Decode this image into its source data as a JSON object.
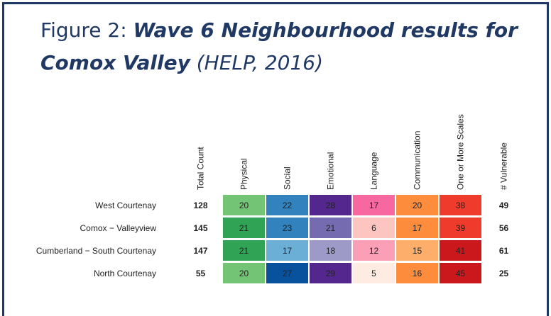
{
  "figure": {
    "label": "Figure 2: ",
    "title": "Wave 6 Neighbourhood results for Comox Valley",
    "source": " (HELP, 2016)"
  },
  "table": {
    "columns": [
      "Total Count",
      "Physical",
      "Social",
      "Emotional",
      "Language",
      "Communication",
      "One or More Scales",
      "# Vulnerable"
    ],
    "rows": [
      {
        "label": "West Courtenay",
        "cells": [
          128,
          20,
          22,
          28,
          17,
          20,
          38,
          49
        ],
        "colors": [
          null,
          "#74c476",
          "#3182bd",
          "#54278f",
          "#f768a1",
          "#fd8d3c",
          "#ef3b2c",
          null
        ]
      },
      {
        "label": "Comox − Valleyview",
        "cells": [
          145,
          21,
          23,
          21,
          6,
          17,
          39,
          56
        ],
        "colors": [
          null,
          "#31a354",
          "#3182bd",
          "#756bb1",
          "#fcc5c0",
          "#fd8d3c",
          "#ef3b2c",
          null
        ]
      },
      {
        "label": "Cumberland − South Courtenay",
        "cells": [
          147,
          21,
          17,
          18,
          12,
          15,
          41,
          61
        ],
        "colors": [
          null,
          "#31a354",
          "#6baed6",
          "#9e9ac8",
          "#fa9fb5",
          "#fdae6b",
          "#cb181d",
          null
        ]
      },
      {
        "label": "North Courtenay",
        "cells": [
          55,
          20,
          27,
          29,
          5,
          16,
          45,
          25
        ],
        "colors": [
          null,
          "#74c476",
          "#08519c",
          "#54278f",
          "#feebe2",
          "#fd8d3c",
          "#cb181d",
          null
        ]
      }
    ]
  }
}
